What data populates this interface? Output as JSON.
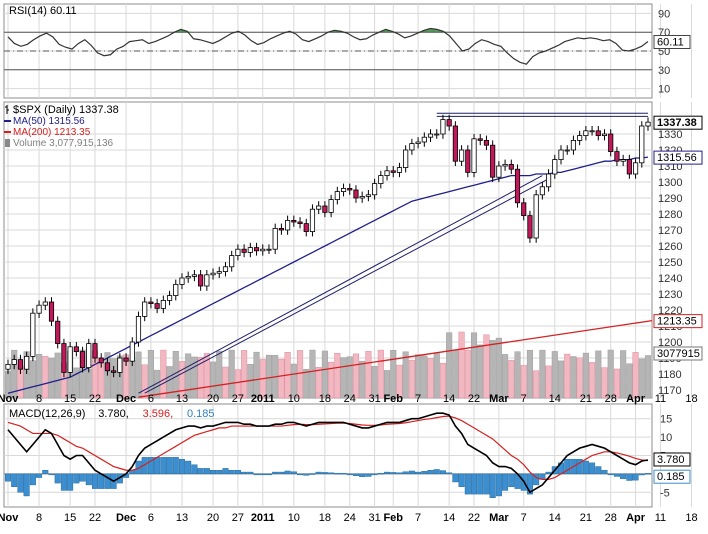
{
  "chart_data": [
    {
      "type": "line",
      "panel": "rsi",
      "title": "RSI(14) 60.11",
      "y_ticks": [
        90,
        70,
        50,
        30,
        10
      ],
      "ylim": [
        0,
        100
      ],
      "reference_lines": [
        70,
        50,
        30
      ],
      "last_value_label": "60.11",
      "series": [
        {
          "values": [
            65,
            58,
            55,
            57,
            62,
            66,
            69,
            65,
            57,
            54,
            52,
            58,
            62,
            56,
            48,
            45,
            46,
            52,
            55,
            60,
            61,
            62,
            58,
            60,
            63,
            66,
            70,
            73,
            71,
            63,
            62,
            60,
            58,
            61,
            65,
            69,
            71,
            67,
            61,
            57,
            59,
            63,
            66,
            69,
            71,
            68,
            62,
            60,
            63,
            66,
            70,
            72,
            71,
            69,
            65,
            62,
            63,
            67,
            70,
            73,
            71,
            68,
            64,
            66,
            69,
            72,
            74,
            73,
            71,
            66,
            58,
            50,
            52,
            58,
            62,
            60,
            57,
            55,
            48,
            42,
            38,
            36,
            44,
            48,
            50,
            53,
            56,
            60,
            62,
            64,
            63,
            64,
            63,
            61,
            62,
            58,
            51,
            50,
            52,
            55,
            60.11
          ]
        }
      ]
    },
    {
      "type": "candlestick",
      "panel": "price",
      "title": "$SPX (Daily) 1337.38",
      "legend": [
        {
          "label": "$SPX (Daily) 1337.38",
          "color": "#000000"
        },
        {
          "label": "MA(50) 1315.56",
          "color": "#1f1f8a"
        },
        {
          "label": "MA(200) 1213.35",
          "color": "#d42020"
        },
        {
          "label": "Volume 3,077,915,136",
          "color": "#808080"
        }
      ],
      "ylim": [
        1165,
        1350
      ],
      "y_ticks": [
        1330,
        1320,
        1310,
        1300,
        1290,
        1280,
        1270,
        1260,
        1250,
        1240,
        1230,
        1220,
        1210,
        1200,
        1190,
        1180,
        1170
      ],
      "price_close": [
        1186,
        1189,
        1183,
        1191,
        1218,
        1223,
        1225,
        1213,
        1199,
        1181,
        1197,
        1194,
        1184,
        1199,
        1190,
        1187,
        1182,
        1181,
        1190,
        1188,
        1200,
        1216,
        1225,
        1224,
        1221,
        1226,
        1229,
        1236,
        1240,
        1241,
        1242,
        1235,
        1242,
        1243,
        1244,
        1247,
        1254,
        1258,
        1256,
        1259,
        1257,
        1258,
        1258,
        1271,
        1270,
        1276,
        1275,
        1274,
        1269,
        1283,
        1285,
        1281,
        1289,
        1294,
        1296,
        1295,
        1290,
        1291,
        1292,
        1299,
        1304,
        1307,
        1306,
        1309,
        1320,
        1324,
        1325,
        1328,
        1330,
        1330,
        1339,
        1335,
        1313,
        1320,
        1306,
        1327,
        1326,
        1323,
        1303,
        1310,
        1311,
        1308,
        1287,
        1279,
        1265,
        1292,
        1297,
        1305,
        1314,
        1320,
        1320,
        1326,
        1329,
        1332,
        1332,
        1329,
        1330,
        1319,
        1313,
        1314,
        1305,
        1312,
        1335,
        1337.38
      ],
      "price_open": [
        1183,
        1186,
        1189,
        1183,
        1191,
        1218,
        1223,
        1225,
        1213,
        1199,
        1181,
        1197,
        1194,
        1184,
        1199,
        1190,
        1187,
        1182,
        1181,
        1190,
        1188,
        1200,
        1216,
        1225,
        1224,
        1221,
        1226,
        1229,
        1236,
        1240,
        1241,
        1242,
        1235,
        1242,
        1243,
        1244,
        1247,
        1254,
        1258,
        1256,
        1259,
        1257,
        1258,
        1258,
        1271,
        1270,
        1276,
        1275,
        1274,
        1269,
        1283,
        1285,
        1281,
        1289,
        1294,
        1296,
        1295,
        1290,
        1291,
        1292,
        1299,
        1304,
        1307,
        1306,
        1309,
        1320,
        1324,
        1325,
        1328,
        1330,
        1330,
        1339,
        1335,
        1313,
        1320,
        1306,
        1327,
        1326,
        1323,
        1303,
        1310,
        1311,
        1308,
        1287,
        1279,
        1265,
        1292,
        1297,
        1305,
        1314,
        1320,
        1320,
        1326,
        1329,
        1332,
        1332,
        1329,
        1330,
        1319,
        1313,
        1314,
        1305,
        1312,
        1335
      ],
      "ma50": [
        1168,
        1169,
        1170,
        1171,
        1172,
        1173,
        1174,
        1175,
        1176,
        1177,
        1178,
        1180,
        1182,
        1184,
        1186,
        1188,
        1190,
        1192,
        1194,
        1196,
        1198,
        1200,
        1202,
        1204,
        1206,
        1208,
        1210,
        1212,
        1214,
        1216,
        1218,
        1220,
        1222,
        1224,
        1226,
        1228,
        1230,
        1232,
        1234,
        1236,
        1238,
        1240,
        1242,
        1244,
        1246,
        1248,
        1250,
        1252,
        1254,
        1256,
        1258,
        1260,
        1262,
        1264,
        1266,
        1268,
        1270,
        1272,
        1274,
        1276,
        1278,
        1280,
        1282,
        1284,
        1286,
        1288,
        1289,
        1290,
        1291,
        1292,
        1293,
        1294,
        1295,
        1296,
        1297,
        1298,
        1299,
        1300,
        1301,
        1302,
        1303,
        1304,
        1304,
        1304,
        1304,
        1305,
        1305,
        1305,
        1306,
        1306,
        1307,
        1308,
        1309,
        1310,
        1311,
        1312,
        1313,
        1313,
        1314,
        1314,
        1314,
        1315,
        1315,
        1315.56
      ],
      "ma200_start_end": [
        1168,
        1213.35
      ],
      "trendlines": [
        {
          "from": {
            "x": 21,
            "y": 1168
          },
          "to": {
            "x": 86,
            "y": 1304
          }
        },
        {
          "from": {
            "x": 22,
            "y": 1168
          },
          "to": {
            "x": 87,
            "y": 1302
          }
        },
        {
          "from": {
            "x": 69,
            "y": 1343
          },
          "to": {
            "x": 103,
            "y": 1343
          }
        },
        {
          "from": {
            "x": 69,
            "y": 1341
          },
          "to": {
            "x": 103,
            "y": 1341
          }
        }
      ],
      "volume": [
        1,
        1,
        0,
        1,
        1,
        1,
        0,
        1,
        1,
        0,
        1,
        1,
        1,
        1,
        0,
        0,
        1,
        1,
        1,
        0,
        1,
        1,
        0,
        1,
        1,
        0,
        1,
        1,
        0,
        1,
        1,
        0,
        0,
        1,
        1,
        0,
        1,
        0,
        0,
        1,
        1,
        0,
        1,
        1,
        0,
        0,
        1,
        0,
        1,
        1,
        0,
        1,
        0,
        0,
        1,
        1,
        0,
        1,
        0,
        1,
        0,
        1,
        1,
        0,
        1,
        0,
        1,
        1,
        0,
        1,
        0,
        1,
        1,
        0,
        0,
        1,
        1,
        0,
        1,
        1,
        1,
        0,
        1,
        0,
        1,
        0,
        1,
        0,
        1,
        1,
        0,
        1,
        0,
        1,
        0,
        1,
        0,
        1,
        0,
        1,
        1,
        0,
        1,
        1
      ],
      "volume_last_label": "3077915",
      "price_label": "1337.38",
      "ma50_label": "1315.56",
      "ma200_label": "1213.35"
    },
    {
      "type": "line",
      "panel": "macd",
      "title_parts": [
        {
          "text": "MACD(12,26,9)",
          "color": "#000000"
        },
        {
          "text": "3.780,",
          "color": "#000000"
        },
        {
          "text": "3.596,",
          "color": "#d42020"
        },
        {
          "text": "0.185",
          "color": "#2f7fc1"
        }
      ],
      "ylim": [
        -9,
        19
      ],
      "y_ticks": [
        15,
        10,
        5,
        -5
      ],
      "series": [
        {
          "name": "MACD",
          "values": [
            12,
            10,
            8,
            6,
            8,
            10,
            12,
            11,
            8,
            5,
            4,
            5,
            5,
            3,
            1,
            0,
            -1,
            -2,
            -1,
            0,
            2,
            5,
            7,
            8,
            9,
            10,
            11,
            12,
            12.5,
            13,
            13,
            12.5,
            13,
            13,
            13.5,
            14,
            14,
            14,
            13.5,
            13.5,
            13,
            13,
            13,
            13.5,
            13.5,
            14,
            14,
            13.5,
            13,
            13.5,
            14,
            14,
            14,
            14,
            14,
            13.5,
            13,
            12.5,
            12.5,
            13,
            13.5,
            14,
            14,
            14,
            14.5,
            15,
            15,
            15.5,
            16,
            16.5,
            16.5,
            16,
            13,
            11,
            8,
            7,
            6,
            5,
            3,
            2,
            2,
            1.5,
            0,
            -2,
            -5,
            -4,
            -3,
            -1,
            1,
            3,
            5,
            6,
            7,
            7.5,
            8,
            7.5,
            7,
            6,
            5,
            4,
            3,
            2.5,
            3.5,
            3.78
          ]
        },
        {
          "name": "Signal",
          "values": [
            14,
            13.5,
            13,
            12,
            11,
            11,
            11,
            11,
            10.5,
            9.5,
            8.5,
            7.5,
            7,
            6,
            5,
            4,
            3,
            2,
            1.5,
            1,
            1,
            1.5,
            2.5,
            3.5,
            4.5,
            5.5,
            6.5,
            7.5,
            8.5,
            9.5,
            10.5,
            11,
            11.5,
            12,
            12.5,
            12.5,
            13,
            13,
            13,
            13,
            13,
            13,
            13,
            13,
            13,
            13.2,
            13.4,
            13.5,
            13.4,
            13.4,
            13.5,
            13.6,
            13.7,
            13.8,
            13.8,
            13.7,
            13.5,
            13.3,
            13.2,
            13.2,
            13.3,
            13.5,
            13.6,
            13.7,
            13.9,
            14.2,
            14.5,
            14.8,
            15,
            15.3,
            15.6,
            15.7,
            15.2,
            14.5,
            13.5,
            12.5,
            11.5,
            10.5,
            9.5,
            8,
            6.5,
            5,
            4,
            2.5,
            0.5,
            -1,
            -1.5,
            -1.5,
            -1,
            0,
            1,
            2,
            3,
            4,
            5,
            5.5,
            6,
            6,
            5.7,
            5.3,
            4.8,
            4.2,
            3.8,
            3.596
          ]
        },
        {
          "name": "Histogram",
          "values": [
            -2,
            -3.5,
            -5,
            -6,
            -3,
            -1,
            1,
            0,
            -2.5,
            -4.5,
            -4.5,
            -2.5,
            -2,
            -3,
            -4,
            -4,
            -4,
            -4,
            -2.5,
            -1,
            1,
            3.5,
            4.5,
            4.5,
            4.5,
            4.5,
            4.5,
            4.5,
            4,
            3.5,
            2.5,
            1.5,
            1.5,
            1,
            1,
            1.5,
            1,
            1,
            0.5,
            0.5,
            0,
            0,
            0,
            0.5,
            0.5,
            0.8,
            0.6,
            0,
            -0.4,
            0.1,
            0.5,
            0.4,
            0.3,
            0.2,
            0.2,
            -0.2,
            -0.5,
            -0.8,
            -0.7,
            -0.2,
            0.2,
            0.5,
            0.4,
            0.3,
            0.6,
            0.8,
            0.5,
            0.7,
            1,
            1.2,
            0.9,
            0.3,
            -2.2,
            -3.5,
            -5.5,
            -5.5,
            -5.5,
            -5.5,
            -6.5,
            -6,
            -4.5,
            -3.5,
            -4,
            -4.5,
            -5.5,
            -3,
            -1.5,
            0.5,
            2,
            3,
            4,
            4,
            4,
            3.5,
            3,
            2,
            1,
            0,
            -0.7,
            -1.3,
            -1.8,
            -1.7,
            -0.3,
            0.185
          ]
        }
      ],
      "macd_label": "3.780",
      "hist_label": "0.185"
    }
  ],
  "x_axis_labels": [
    {
      "text": "Nov",
      "i": 0,
      "bold": true
    },
    {
      "text": "8",
      "i": 5,
      "bold": false
    },
    {
      "text": "15",
      "i": 10,
      "bold": false
    },
    {
      "text": "22",
      "i": 14,
      "bold": false
    },
    {
      "text": "Dec",
      "i": 19,
      "bold": true
    },
    {
      "text": "6",
      "i": 23,
      "bold": false
    },
    {
      "text": "13",
      "i": 28,
      "bold": false
    },
    {
      "text": "20",
      "i": 33,
      "bold": false
    },
    {
      "text": "27",
      "i": 37,
      "bold": false
    },
    {
      "text": "2011",
      "i": 41,
      "bold": true
    },
    {
      "text": "10",
      "i": 46,
      "bold": false
    },
    {
      "text": "18",
      "i": 51,
      "bold": false
    },
    {
      "text": "24",
      "i": 55,
      "bold": false
    },
    {
      "text": "31",
      "i": 59,
      "bold": false
    },
    {
      "text": "Feb",
      "i": 62,
      "bold": true
    },
    {
      "text": "7",
      "i": 66,
      "bold": false
    },
    {
      "text": "14",
      "i": 71,
      "bold": false
    },
    {
      "text": "22",
      "i": 75,
      "bold": false
    },
    {
      "text": "Mar",
      "i": 79,
      "bold": true
    },
    {
      "text": "7",
      "i": 83,
      "bold": false
    },
    {
      "text": "14",
      "i": 88,
      "bold": false
    },
    {
      "text": "21",
      "i": 93,
      "bold": false
    },
    {
      "text": "28",
      "i": 97,
      "bold": false
    },
    {
      "text": "Apr",
      "i": 101,
      "bold": true
    },
    {
      "text": "11",
      "i": 105,
      "bold": false
    },
    {
      "text": "18",
      "i": 110,
      "bold": false
    }
  ],
  "colors": {
    "up_candle": "#ffffff",
    "down_candle": "#c2185b",
    "ma50": "#1f1f8a",
    "ma200": "#d42020",
    "volume_up": "#b5b5b5",
    "volume_down": "#f2b8c2",
    "rsi_line": "#333333",
    "rsi_fill_over": "#2e7d32",
    "macd_line": "#000000",
    "signal_line": "#d42020",
    "hist": "#3b8fd0",
    "grid": "#d9d9d9"
  }
}
